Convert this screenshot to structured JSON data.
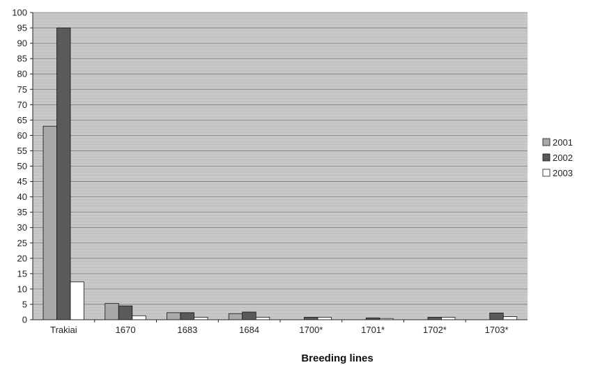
{
  "chart_data": {
    "type": "bar",
    "title": "",
    "xlabel": "Breeding lines",
    "ylabel": "",
    "ylim": [
      0,
      100
    ],
    "ytick_step": 5,
    "grid": "horizontal minor every 1, major every 5",
    "legend_position": "right",
    "categories": [
      "Trakiai",
      "1670",
      "1683",
      "1684",
      "1700*",
      "1701*",
      "1702*",
      "1703*"
    ],
    "series": [
      {
        "name": "2001",
        "color": "#a9a9a9",
        "values": [
          63,
          5.3,
          2.3,
          2,
          0,
          0,
          0,
          0
        ]
      },
      {
        "name": "2002",
        "color": "#5a5a5a",
        "values": [
          95,
          4.5,
          2.3,
          2.5,
          0.8,
          0.6,
          0.8,
          2.2
        ]
      },
      {
        "name": "2003",
        "color": "#ffffff",
        "values": [
          12.3,
          1.3,
          0.8,
          0.8,
          0.8,
          0.4,
          0.8,
          1
        ]
      }
    ]
  }
}
